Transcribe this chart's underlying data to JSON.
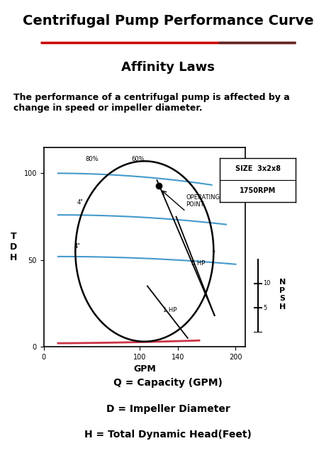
{
  "title": "Centrifugal Pump Performance Curve",
  "subtitle": "Affinity Laws",
  "description": "The performance of a centrifugal pump is affected by a\nchange in speed or impeller diameter.",
  "footnote1": "Q = Capacity (GPM)",
  "footnote2": "D = Impeller Diameter",
  "footnote3": "H = Total Dynamic Head(Feet)",
  "size_label": "SIZE  3x2x8",
  "rpm_label": "1750RPM",
  "xlabel": "GPM",
  "ylabel_tdh": "T\nD\nH",
  "ylabel_npsh": "N\nP\nS\nH",
  "x_ticks": [
    0,
    100,
    140,
    200
  ],
  "y_ticks_tdh": [
    0,
    50,
    100
  ],
  "bg_color": "#ffffff",
  "title_color": "#000000",
  "separator_color": "#cc0000",
  "curve_color_black": "#000000",
  "curve_color_blue": "#4499cc",
  "curve_color_red": "#cc3344",
  "operating_point": [
    120,
    93
  ]
}
